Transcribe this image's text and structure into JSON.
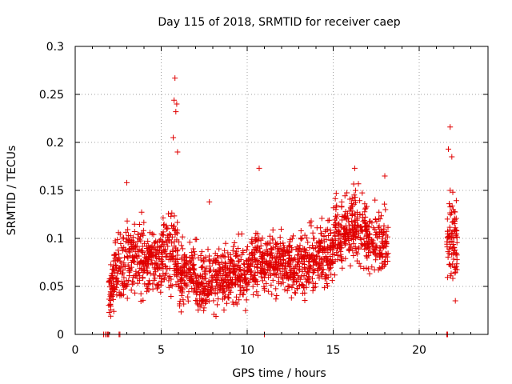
{
  "chart_data": {
    "type": "scatter",
    "title": "Day 115 of 2018, SRMTID for receiver caep",
    "xlabel": "GPS time / hours",
    "ylabel": "SRMTID / TECUs",
    "xlim": [
      0,
      24
    ],
    "ylim": [
      0,
      0.3
    ],
    "xticks": [
      0,
      5,
      10,
      15,
      20
    ],
    "xtick_labels": [
      "0",
      "5",
      "10",
      "15",
      "20"
    ],
    "yticks": [
      0,
      0.05,
      0.1,
      0.15,
      0.2,
      0.25,
      0.3
    ],
    "ytick_labels": [
      "0",
      "0.05",
      "0.1",
      "0.15",
      "0.2",
      "0.25",
      "0.3"
    ],
    "grid": true,
    "marker": "+",
    "color": "#e00000",
    "segments": [
      {
        "x_range": [
          1.95,
          2.25
        ],
        "baseline": 0.05,
        "spread": 0.018,
        "count": 50,
        "max": 0.095
      },
      {
        "x_range": [
          2.25,
          3.0
        ],
        "baseline": 0.07,
        "spread": 0.025,
        "count": 80,
        "max": 0.11
      },
      {
        "x_range": [
          3.0,
          4.0
        ],
        "baseline": 0.08,
        "spread": 0.025,
        "count": 120,
        "max": 0.158
      },
      {
        "x_range": [
          4.0,
          5.0
        ],
        "baseline": 0.075,
        "spread": 0.022,
        "count": 120,
        "max": 0.142
      },
      {
        "x_range": [
          5.0,
          6.0
        ],
        "baseline": 0.085,
        "spread": 0.025,
        "count": 120,
        "max": 0.267
      },
      {
        "x_range": [
          6.0,
          7.0
        ],
        "baseline": 0.065,
        "spread": 0.02,
        "count": 120,
        "max": 0.12
      },
      {
        "x_range": [
          7.0,
          8.0
        ],
        "baseline": 0.055,
        "spread": 0.02,
        "count": 120,
        "max": 0.138
      },
      {
        "x_range": [
          8.0,
          9.0
        ],
        "baseline": 0.058,
        "spread": 0.02,
        "count": 120,
        "max": 0.1
      },
      {
        "x_range": [
          9.0,
          10.0
        ],
        "baseline": 0.062,
        "spread": 0.02,
        "count": 120,
        "max": 0.105
      },
      {
        "x_range": [
          10.0,
          11.0
        ],
        "baseline": 0.075,
        "spread": 0.02,
        "count": 120,
        "max": 0.173
      },
      {
        "x_range": [
          11.0,
          12.0
        ],
        "baseline": 0.075,
        "spread": 0.02,
        "count": 120,
        "max": 0.13
      },
      {
        "x_range": [
          12.0,
          13.0
        ],
        "baseline": 0.072,
        "spread": 0.02,
        "count": 120,
        "max": 0.125
      },
      {
        "x_range": [
          13.0,
          14.0
        ],
        "baseline": 0.075,
        "spread": 0.02,
        "count": 120,
        "max": 0.125
      },
      {
        "x_range": [
          14.0,
          15.0
        ],
        "baseline": 0.085,
        "spread": 0.022,
        "count": 120,
        "max": 0.14
      },
      {
        "x_range": [
          15.0,
          16.0
        ],
        "baseline": 0.105,
        "spread": 0.025,
        "count": 130,
        "max": 0.157
      },
      {
        "x_range": [
          16.0,
          17.0
        ],
        "baseline": 0.11,
        "spread": 0.025,
        "count": 130,
        "max": 0.173
      },
      {
        "x_range": [
          17.0,
          18.2
        ],
        "baseline": 0.095,
        "spread": 0.02,
        "count": 120,
        "max": 0.165
      },
      {
        "x_range": [
          21.6,
          22.2
        ],
        "baseline": 0.1,
        "spread": 0.03,
        "count": 90,
        "max": 0.216
      }
    ],
    "notable_points": [
      {
        "x": 5.8,
        "y": 0.267
      },
      {
        "x": 5.75,
        "y": 0.244
      },
      {
        "x": 5.9,
        "y": 0.24
      },
      {
        "x": 5.85,
        "y": 0.232
      },
      {
        "x": 5.7,
        "y": 0.205
      },
      {
        "x": 5.95,
        "y": 0.19
      },
      {
        "x": 21.8,
        "y": 0.216
      },
      {
        "x": 21.7,
        "y": 0.193
      },
      {
        "x": 21.9,
        "y": 0.185
      },
      {
        "x": 10.7,
        "y": 0.173
      },
      {
        "x": 16.25,
        "y": 0.173
      },
      {
        "x": 18.0,
        "y": 0.165
      },
      {
        "x": 3.0,
        "y": 0.158
      },
      {
        "x": 7.8,
        "y": 0.138
      },
      {
        "x": 22.1,
        "y": 0.035
      }
    ],
    "zero_points_x": [
      1.65,
      1.75,
      1.85,
      1.9,
      1.95,
      2.55,
      2.6,
      11.0,
      21.6,
      21.65
    ]
  }
}
